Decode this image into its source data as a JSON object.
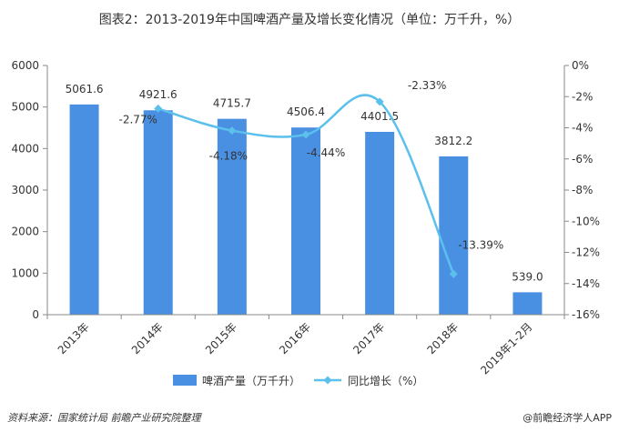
{
  "chart_data": {
    "type": "bar",
    "title": "图表2：2013-2019年中国啤酒产量及增长变化情况（单位：万千升，%）",
    "categories": [
      "2013年",
      "2014年",
      "2015年",
      "2016年",
      "2017年",
      "2018年",
      "2019年1-2月"
    ],
    "series": [
      {
        "name": "啤酒产量（万千升）",
        "type": "bar",
        "axis": "left",
        "color": "#4a90e2",
        "values": [
          5061.6,
          4921.6,
          4715.7,
          4506.4,
          4401.5,
          3812.2,
          539.0
        ],
        "labels": [
          "5061.6",
          "4921.6",
          "4715.7",
          "4506.4",
          "4401.5",
          "3812.2",
          "539.0"
        ]
      },
      {
        "name": "同比增长（%）",
        "type": "line",
        "axis": "right",
        "color": "#5bc0eb",
        "values": [
          null,
          -2.77,
          -4.18,
          -4.44,
          -2.33,
          -13.39,
          null
        ],
        "labels": [
          "",
          "-2.77%",
          "-4.18%",
          "-4.44%",
          "-2.33%",
          "-13.39%",
          ""
        ]
      }
    ],
    "y_left": {
      "min": 0,
      "max": 6000,
      "ticks": [
        0,
        1000,
        2000,
        3000,
        4000,
        5000,
        6000
      ],
      "tick_labels": [
        "0",
        "1000",
        "2000",
        "3000",
        "4000",
        "5000",
        "6000"
      ]
    },
    "y_right": {
      "min": -16,
      "max": 0,
      "ticks": [
        0,
        -2,
        -4,
        -6,
        -8,
        -10,
        -12,
        -14,
        -16
      ],
      "tick_labels": [
        "0%",
        "-2%",
        "-4%",
        "-6%",
        "-8%",
        "-10%",
        "-12%",
        "-14%",
        "-16%"
      ]
    },
    "grid": false,
    "legend_position": "bottom"
  },
  "footer": {
    "source": "资料来源：国家统计局 前瞻产业研究院整理",
    "brand": "@前瞻经济学人APP"
  }
}
